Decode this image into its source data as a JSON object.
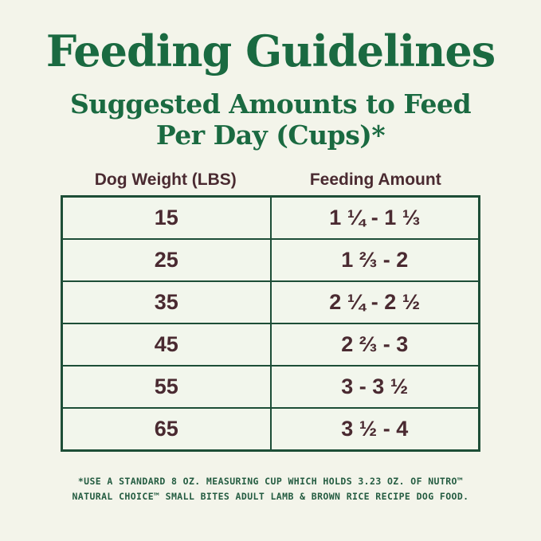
{
  "title": "Feeding Guidelines",
  "subtitle": {
    "line1": "Suggested Amounts to Feed",
    "line2": "Per Day (Cups)*"
  },
  "table": {
    "columns": [
      "Dog Weight (LBS)",
      "Feeding Amount"
    ],
    "rows": [
      {
        "weight": "15",
        "amount": "1 ¼ - 1 ⅓"
      },
      {
        "weight": "25",
        "amount": "1 ⅔ - 2"
      },
      {
        "weight": "35",
        "amount": "2 ¼ - 2 ½"
      },
      {
        "weight": "45",
        "amount": "2 ⅔ - 3"
      },
      {
        "weight": "55",
        "amount": "3 - 3 ½"
      },
      {
        "weight": "65",
        "amount": "3 ½ - 4"
      }
    ]
  },
  "footnote": {
    "line1": "*USE A STANDARD 8 OZ. MEASURING CUP WHICH HOLDS 3.23 OZ. OF NUTRO™",
    "line2": "NATURAL CHOICE™ SMALL BITES ADULT LAMB & BROWN RICE RECIPE DOG FOOD."
  },
  "colors": {
    "title_green": "#1a6a41",
    "border_green": "#1d4e37",
    "table_text_maroon": "#4a2a31",
    "footnote_green": "#245c41",
    "page_background": "#f3f4ea",
    "cell_background": "#f2f6ec"
  },
  "chart_data": {
    "type": "table",
    "title": "Feeding Guidelines — Suggested Amounts to Feed Per Day (Cups)*",
    "columns": [
      "Dog Weight (LBS)",
      "Feeding Amount"
    ],
    "rows": [
      [
        "15",
        "1 ¼ - 1 ⅓"
      ],
      [
        "25",
        "1 ⅔ - 2"
      ],
      [
        "35",
        "2 ¼ - 2 ½"
      ],
      [
        "45",
        "2 ⅔ - 3"
      ],
      [
        "55",
        "3 - 3 ½"
      ],
      [
        "65",
        "3 ½ - 4"
      ]
    ]
  }
}
